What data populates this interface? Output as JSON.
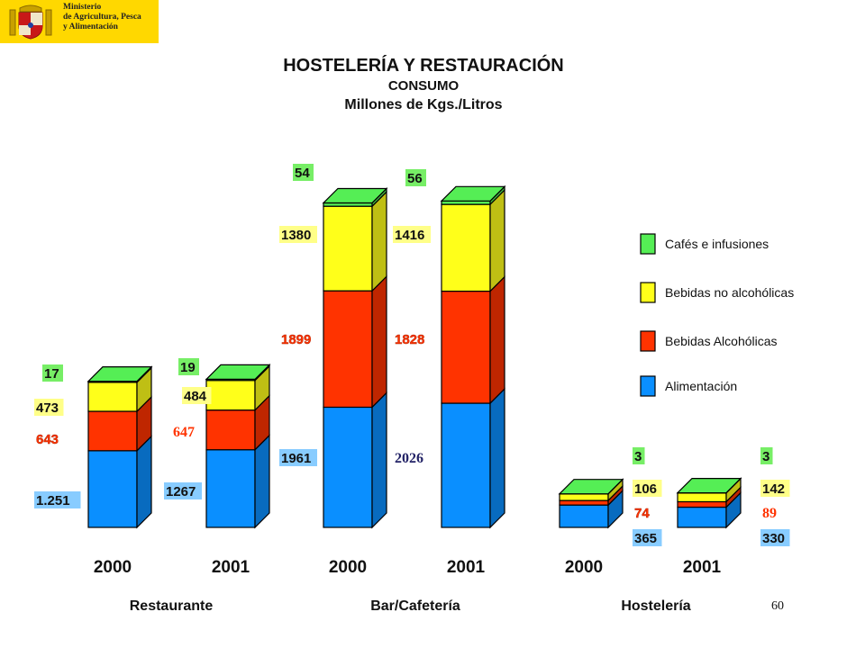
{
  "logo": {
    "ministry_lines": [
      "Ministerio",
      "de Agricultura, Pesca",
      "y Alimentación"
    ],
    "background_color": "#ffd800"
  },
  "header": {
    "title": "HOSTELERÍA Y RESTAURACIÓN",
    "subtitle": "CONSUMO",
    "unit": "Millones de Kgs./Litros"
  },
  "page_number": "60",
  "chart_data": {
    "type": "bar",
    "stacked": true,
    "style": "3d",
    "groups": [
      {
        "label": "Restaurante",
        "categories": [
          "2000",
          "2001"
        ]
      },
      {
        "label": "Bar/Cafetería",
        "categories": [
          "2000",
          "2001"
        ]
      },
      {
        "label": "Hostelería",
        "categories": [
          "2000",
          "2001"
        ]
      }
    ],
    "categories": [
      "2000",
      "2001",
      "2000",
      "2001",
      "2000",
      "2001"
    ],
    "series": [
      {
        "name": "Alimentación",
        "color": "#0a8fff",
        "values": [
          1251,
          1267,
          1961,
          2026,
          365,
          330
        ],
        "labels": [
          "1.251",
          "1267",
          "1961",
          "2026",
          "365",
          "330"
        ]
      },
      {
        "name": "Bebidas Alcohólicas",
        "color": "#ff3300",
        "values": [
          643,
          647,
          1899,
          1828,
          74,
          89
        ],
        "labels": [
          "643",
          "647",
          "1899",
          "1828",
          "74",
          "89"
        ]
      },
      {
        "name": "Bebidas no alcohólicas",
        "color": "#ffff1a",
        "values": [
          473,
          484,
          1380,
          1416,
          106,
          142
        ],
        "labels": [
          "473",
          "484",
          "1380",
          "1416",
          "106",
          "142"
        ]
      },
      {
        "name": "Cafés e infusiones",
        "color": "#55ee55",
        "values": [
          17,
          19,
          54,
          56,
          3,
          3
        ],
        "labels": [
          "17",
          "19",
          "54",
          "56",
          "3",
          "3"
        ]
      }
    ],
    "label_styles": {
      "badge_colors": {
        "Alimentación": "#88ccff",
        "Bebidas Alcohólicas": "#ffffff",
        "Bebidas no alcohólicas": "#ffff88",
        "Cafés e infusiones": "#77ee66"
      },
      "serif_labels": [
        "647",
        "2026",
        "89"
      ]
    },
    "legend": {
      "position": "right",
      "order": [
        "Cafés e infusiones",
        "Bebidas no alcohólicas",
        "Bebidas Alcohólicas",
        "Alimentación"
      ]
    },
    "grid": false,
    "axes_visible": false
  }
}
